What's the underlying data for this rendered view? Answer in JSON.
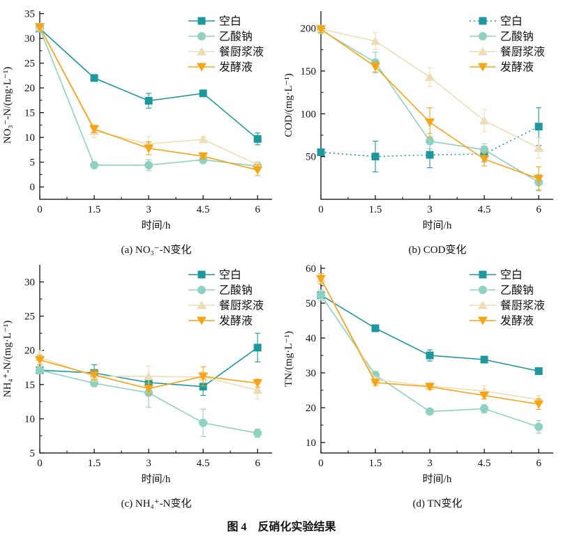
{
  "figure": {
    "caption": "图 4　反硝化实验结果"
  },
  "colors": {
    "blank": "#1d989f",
    "acetate": "#8fd1c0",
    "kitchen": "#ecddb5",
    "ferment": "#f5a415",
    "axis": "#000000",
    "text": "#111111"
  },
  "chart_data": [
    {
      "type": "line",
      "title": "(a) NO₃⁻-N变化",
      "xlabel": "时间/h",
      "ylabel": "NO₃⁻-N/(mg·L⁻¹)",
      "x": [
        0,
        1.5,
        3,
        4.5,
        6
      ],
      "xticks": [
        "0",
        "1.5",
        "3",
        "4.5",
        "6"
      ],
      "xlim": [
        0,
        6.4
      ],
      "ylim": [
        -2.5,
        35.5
      ],
      "yticks": [
        0,
        5,
        10,
        15,
        20,
        25,
        30,
        35
      ],
      "yminor": 2.5,
      "grid": false,
      "legend_position": "top-right",
      "series": [
        {
          "name": "空白",
          "color_key": "blank",
          "marker": "square",
          "line": "solid",
          "values": [
            32,
            22,
            17.4,
            18.9,
            9.7
          ],
          "errors": [
            0.5,
            0.4,
            1.5,
            0.4,
            1.2
          ]
        },
        {
          "name": "乙酸钠",
          "color_key": "acetate",
          "marker": "circle",
          "line": "solid",
          "values": [
            32,
            4.4,
            4.4,
            5.5,
            4.2
          ],
          "errors": [
            0.5,
            0.4,
            1.1,
            0.8,
            0.8
          ]
        },
        {
          "name": "餐厨浆液",
          "color_key": "kitchen",
          "marker": "triangle-up",
          "line": "solid",
          "values": [
            32.3,
            11.3,
            8.7,
            9.6,
            4.5
          ],
          "errors": [
            0.6,
            1.3,
            1.5,
            0.5,
            0.6
          ]
        },
        {
          "name": "发酵液",
          "color_key": "ferment",
          "marker": "triangle-down",
          "line": "solid",
          "values": [
            32.3,
            11.7,
            7.8,
            6.2,
            3.4
          ],
          "errors": [
            0.6,
            0.7,
            1.3,
            0.6,
            1.1
          ]
        }
      ]
    },
    {
      "type": "line",
      "title": "(b) COD变化",
      "xlabel": "时间/h",
      "ylabel": "COD/(mg·L⁻¹)",
      "x": [
        0,
        1.5,
        3,
        4.5,
        6
      ],
      "xticks": [
        "0",
        "1.5",
        "3",
        "4.5",
        "6"
      ],
      "xlim": [
        0,
        6.4
      ],
      "ylim": [
        0,
        220
      ],
      "yticks": [
        50,
        100,
        150,
        200
      ],
      "yminor": 25,
      "grid": false,
      "legend_position": "top-right",
      "series": [
        {
          "name": "空白",
          "color_key": "blank",
          "marker": "square",
          "line": "dotted",
          "values": [
            55,
            50,
            52,
            53,
            85
          ],
          "errors": [
            4,
            18,
            15,
            9,
            22
          ]
        },
        {
          "name": "乙酸钠",
          "color_key": "acetate",
          "marker": "circle",
          "line": "solid",
          "values": [
            198,
            160,
            68,
            58,
            20
          ],
          "errors": [
            4,
            12,
            9,
            7,
            9
          ]
        },
        {
          "name": "餐厨浆液",
          "color_key": "kitchen",
          "marker": "triangle-up",
          "line": "solid",
          "values": [
            199,
            185,
            143,
            92,
            60
          ],
          "errors": [
            4,
            10,
            11,
            13,
            12
          ]
        },
        {
          "name": "发酵液",
          "color_key": "ferment",
          "marker": "triangle-down",
          "line": "solid",
          "values": [
            199,
            155,
            90,
            47,
            24
          ],
          "errors": [
            4,
            6,
            17,
            8,
            14
          ]
        }
      ]
    },
    {
      "type": "line",
      "title": "(c) NH₄⁺-N变化",
      "xlabel": "时间/h",
      "ylabel": "NH₄⁺-N/(mg·L⁻¹)",
      "x": [
        0,
        1.5,
        3,
        4.5,
        6
      ],
      "xticks": [
        "0",
        "1.5",
        "3",
        "4.5",
        "6"
      ],
      "xlim": [
        0,
        6.4
      ],
      "ylim": [
        5,
        32.5
      ],
      "yticks": [
        5,
        10,
        15,
        20,
        25,
        30
      ],
      "yminor": 2.5,
      "grid": false,
      "legend_position": "top-right",
      "series": [
        {
          "name": "空白",
          "color_key": "blank",
          "marker": "square",
          "line": "solid",
          "values": [
            17.1,
            16.7,
            15.3,
            14.7,
            20.4
          ],
          "errors": [
            0.4,
            1.2,
            0.9,
            1.3,
            2.1
          ]
        },
        {
          "name": "乙酸钠",
          "color_key": "acetate",
          "marker": "circle",
          "line": "solid",
          "values": [
            17.1,
            15.2,
            13.8,
            9.4,
            7.9
          ],
          "errors": [
            0.4,
            0.5,
            2.1,
            2.0,
            0.6
          ]
        },
        {
          "name": "餐厨浆液",
          "color_key": "kitchen",
          "marker": "triangle-up",
          "line": "solid",
          "values": [
            19.0,
            16.2,
            16.2,
            16.1,
            14.2
          ],
          "errors": [
            1.0,
            0.7,
            1.5,
            0.8,
            1.3
          ]
        },
        {
          "name": "发酵液",
          "color_key": "ferment",
          "marker": "triangle-down",
          "line": "solid",
          "values": [
            18.6,
            16.4,
            14.4,
            16.2,
            15.2
          ],
          "errors": [
            0.7,
            0.7,
            0.8,
            1.4,
            0.6
          ]
        }
      ]
    },
    {
      "type": "line",
      "title": "(d) TN变化",
      "xlabel": "时间/h",
      "ylabel": "TN/(mg·L⁻¹)",
      "x": [
        0,
        1.5,
        3,
        4.5,
        6
      ],
      "xticks": [
        "0",
        "1.5",
        "3",
        "4.5",
        "6"
      ],
      "xlim": [
        0,
        6.4
      ],
      "ylim": [
        7,
        61
      ],
      "yticks": [
        10,
        20,
        30,
        40,
        50,
        60
      ],
      "yminor": 5,
      "grid": false,
      "legend_position": "top-right",
      "series": [
        {
          "name": "空白",
          "color_key": "blank",
          "marker": "square",
          "line": "solid",
          "values": [
            52.3,
            42.8,
            35.0,
            33.8,
            30.5
          ],
          "errors": [
            1.0,
            0.6,
            1.6,
            0.8,
            1.0
          ]
        },
        {
          "name": "乙酸钠",
          "color_key": "acetate",
          "marker": "circle",
          "line": "solid",
          "values": [
            52.3,
            29.4,
            18.9,
            19.7,
            14.5
          ],
          "errors": [
            1.5,
            1.0,
            0.7,
            1.2,
            1.8
          ]
        },
        {
          "name": "餐厨浆液",
          "color_key": "kitchen",
          "marker": "triangle-up",
          "line": "solid",
          "values": [
            57.0,
            28.0,
            26.2,
            24.8,
            22.3
          ],
          "errors": [
            1.0,
            0.8,
            1.0,
            1.5,
            1.2
          ]
        },
        {
          "name": "发酵液",
          "color_key": "ferment",
          "marker": "triangle-down",
          "line": "solid",
          "values": [
            57.0,
            27.2,
            26.0,
            23.5,
            21.0
          ],
          "errors": [
            1.5,
            0.8,
            0.8,
            1.0,
            1.5
          ]
        }
      ]
    }
  ]
}
